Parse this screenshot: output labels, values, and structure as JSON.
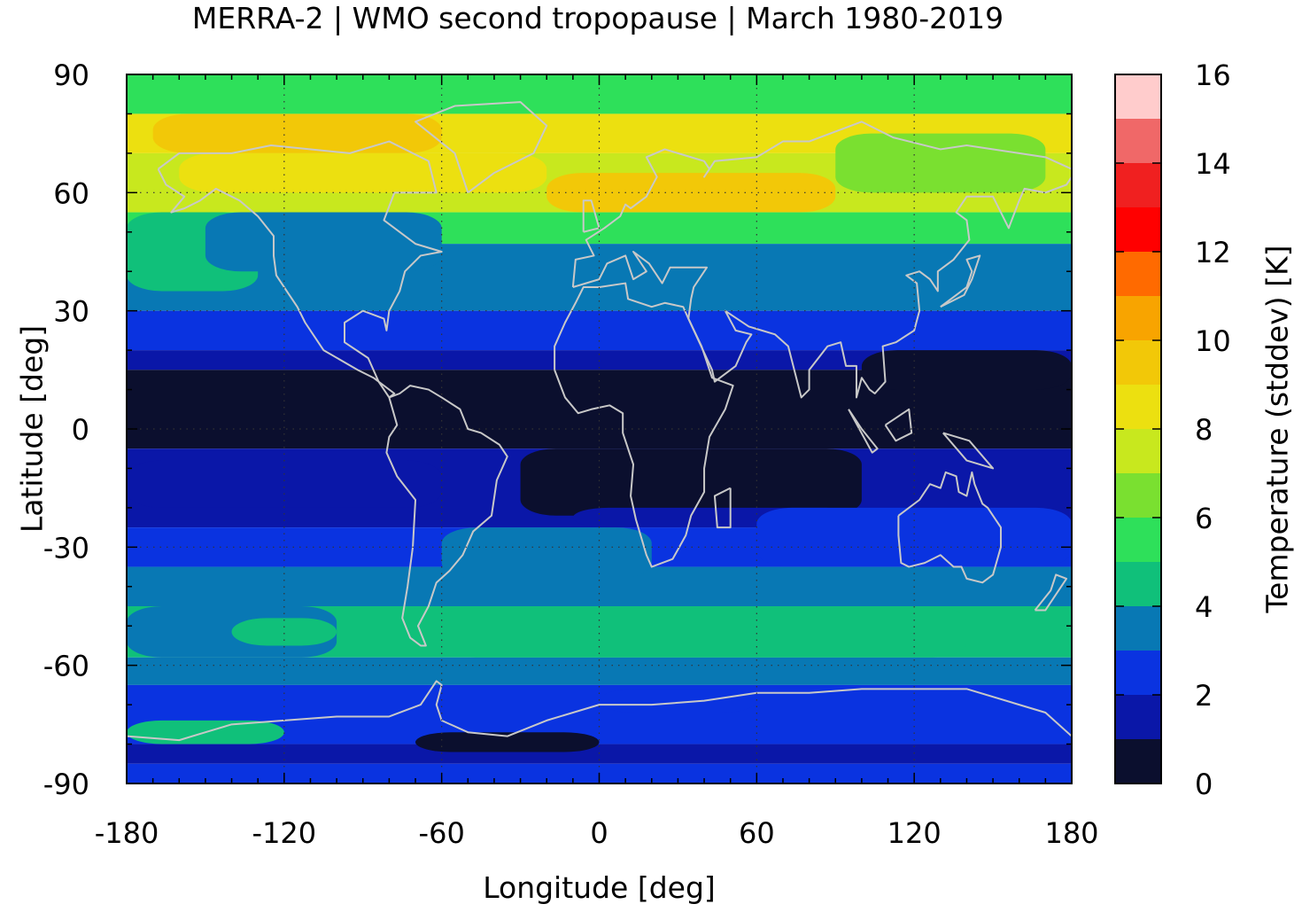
{
  "chart_data": {
    "type": "heatmap",
    "title": "MERRA-2 | WMO second tropopause | March 1980-2019",
    "xlabel": "Longitude [deg]",
    "ylabel": "Latitude [deg]",
    "xlim": [
      -180,
      180
    ],
    "ylim": [
      -90,
      90
    ],
    "x_ticks": [
      "-180",
      "-120",
      "-60",
      "0",
      "60",
      "120",
      "180"
    ],
    "y_ticks": [
      "90",
      "60",
      "30",
      "0",
      "-30",
      "-60",
      "-90"
    ],
    "grid": true,
    "overlay": "coastlines",
    "colorbar": {
      "label": "Temperature (stddev) [K]",
      "range": [
        0,
        16
      ],
      "ticks": [
        "0",
        "2",
        "4",
        "6",
        "8",
        "10",
        "12",
        "14",
        "16"
      ],
      "levels": [
        {
          "from": 0,
          "to": 1,
          "color": "#0b0f2e"
        },
        {
          "from": 1,
          "to": 2,
          "color": "#0a17a8"
        },
        {
          "from": 2,
          "to": 3,
          "color": "#0a33e0"
        },
        {
          "from": 3,
          "to": 4,
          "color": "#0878b4"
        },
        {
          "from": 4,
          "to": 5,
          "color": "#10c07a"
        },
        {
          "from": 5,
          "to": 6,
          "color": "#2ee05a"
        },
        {
          "from": 6,
          "to": 7,
          "color": "#7ae030"
        },
        {
          "from": 7,
          "to": 8,
          "color": "#c8e81e"
        },
        {
          "from": 8,
          "to": 9,
          "color": "#ece010"
        },
        {
          "from": 9,
          "to": 10,
          "color": "#f2c808"
        },
        {
          "from": 10,
          "to": 11,
          "color": "#f8a400"
        },
        {
          "from": 11,
          "to": 12,
          "color": "#ff6a00"
        },
        {
          "from": 12,
          "to": 13,
          "color": "#ff0000"
        },
        {
          "from": 13,
          "to": 14,
          "color": "#f02020"
        },
        {
          "from": 14,
          "to": 15,
          "color": "#f06868"
        },
        {
          "from": 15,
          "to": 16,
          "color": "#ffcccc"
        }
      ]
    },
    "zonal_bands": [
      {
        "lat_from": 80,
        "lat_to": 90,
        "value": 5.5
      },
      {
        "lat_from": 70,
        "lat_to": 80,
        "value": 8.0
      },
      {
        "lat_from": 55,
        "lat_to": 70,
        "value": 7.0
      },
      {
        "lat_from": 47,
        "lat_to": 55,
        "value": 5.5
      },
      {
        "lat_from": 30,
        "lat_to": 47,
        "value": 3.5
      },
      {
        "lat_from": 20,
        "lat_to": 30,
        "value": 2.5
      },
      {
        "lat_from": 15,
        "lat_to": 20,
        "value": 1.5
      },
      {
        "lat_from": -5,
        "lat_to": 15,
        "value": 0.5
      },
      {
        "lat_from": -25,
        "lat_to": -5,
        "value": 1.5
      },
      {
        "lat_from": -35,
        "lat_to": -25,
        "value": 2.5
      },
      {
        "lat_from": -45,
        "lat_to": -35,
        "value": 3.5
      },
      {
        "lat_from": -58,
        "lat_to": -45,
        "value": 4.5
      },
      {
        "lat_from": -65,
        "lat_to": -58,
        "value": 3.5
      },
      {
        "lat_from": -80,
        "lat_to": -65,
        "value": 2.5
      },
      {
        "lat_from": -85,
        "lat_to": -80,
        "value": 1.5
      },
      {
        "lat_from": -90,
        "lat_to": -85,
        "value": 2.5
      }
    ],
    "features": [
      {
        "lon": [
          -170,
          -60
        ],
        "lat": [
          70,
          80
        ],
        "value": 9.5
      },
      {
        "lon": [
          -20,
          90
        ],
        "lat": [
          55,
          65
        ],
        "value": 9.0
      },
      {
        "lon": [
          -160,
          -20
        ],
        "lat": [
          60,
          70
        ],
        "value": 8.0
      },
      {
        "lon": [
          90,
          170
        ],
        "lat": [
          60,
          75
        ],
        "value": 6.0
      },
      {
        "lon": [
          -180,
          -130
        ],
        "lat": [
          35,
          55
        ],
        "value": 4.5
      },
      {
        "lon": [
          -150,
          -60
        ],
        "lat": [
          40,
          55
        ],
        "value": 3.5
      },
      {
        "lon": [
          100,
          180
        ],
        "lat": [
          10,
          20
        ],
        "value": 0.5
      },
      {
        "lon": [
          -30,
          100
        ],
        "lat": [
          -22,
          -5
        ],
        "value": 0.5
      },
      {
        "lon": [
          -10,
          100
        ],
        "lat": [
          -25,
          -20
        ],
        "value": 1.5
      },
      {
        "lon": [
          -180,
          -60
        ],
        "lat": [
          -20,
          -8
        ],
        "value": 1.5
      },
      {
        "lon": [
          -60,
          20
        ],
        "lat": [
          -38,
          -25
        ],
        "value": 3.5
      },
      {
        "lon": [
          60,
          180
        ],
        "lat": [
          -35,
          -20
        ],
        "value": 2.5
      },
      {
        "lon": [
          -60,
          140
        ],
        "lat": [
          -58,
          -45
        ],
        "value": 4.5
      },
      {
        "lon": [
          -180,
          -100
        ],
        "lat": [
          -58,
          -45
        ],
        "value": 3.5
      },
      {
        "lon": [
          -140,
          -100
        ],
        "lat": [
          -55,
          -48
        ],
        "value": 4.5
      },
      {
        "lon": [
          -180,
          -120
        ],
        "lat": [
          -80,
          -74
        ],
        "value": 4.5
      },
      {
        "lon": [
          -70,
          0
        ],
        "lat": [
          -82,
          -77
        ],
        "value": 0.5
      },
      {
        "lon": [
          0,
          60
        ],
        "lat": [
          -72,
          -66
        ],
        "value": 2.5
      }
    ]
  }
}
